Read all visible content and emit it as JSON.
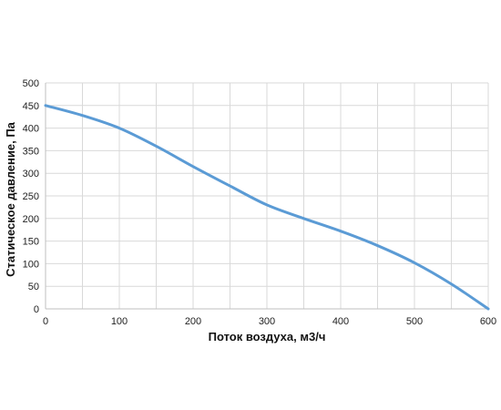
{
  "chart_data": {
    "type": "line",
    "xlabel": "Поток воздуха, м3/ч",
    "ylabel": "Статическое давление, Па",
    "xlim": [
      0,
      600
    ],
    "ylim": [
      0,
      500
    ],
    "x_ticks": [
      0,
      100,
      200,
      300,
      400,
      500,
      600
    ],
    "y_ticks": [
      0,
      50,
      100,
      150,
      200,
      250,
      300,
      350,
      400,
      450,
      500
    ],
    "x_minor_step": 50,
    "grid": true,
    "legend": "none",
    "series": [
      {
        "color": "#5b9bd5",
        "x": [
          0,
          50,
          100,
          150,
          200,
          250,
          300,
          350,
          400,
          450,
          500,
          550,
          600
        ],
        "y": [
          450,
          428,
          400,
          360,
          315,
          272,
          230,
          200,
          172,
          140,
          102,
          55,
          0
        ]
      }
    ]
  }
}
